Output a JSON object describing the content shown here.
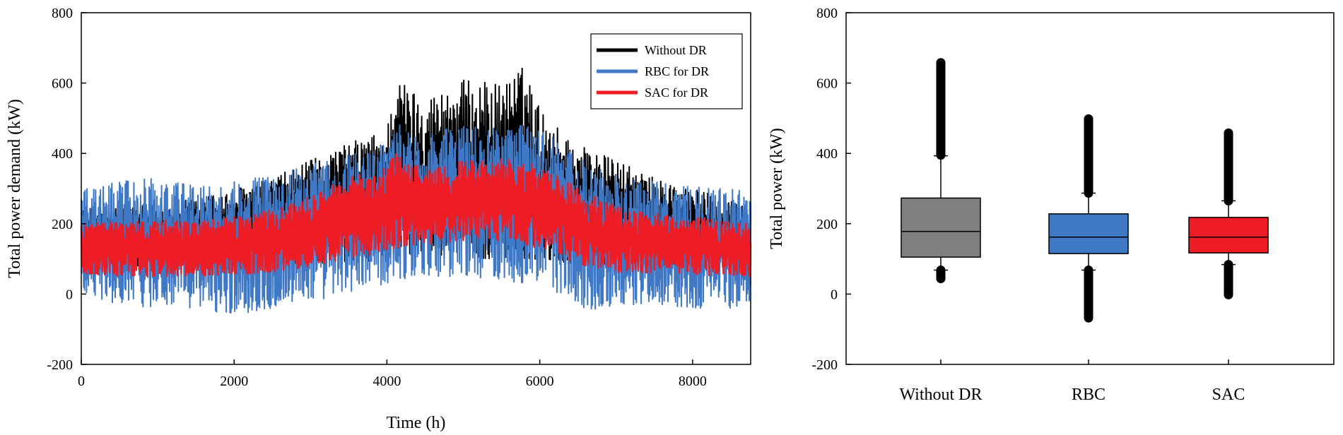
{
  "chart_data": [
    {
      "type": "line",
      "xlabel": "Time (h)",
      "ylabel": "Total power demand (kW)",
      "xlim": [
        0,
        8760
      ],
      "ylim": [
        -200,
        800
      ],
      "xticks": [
        0,
        2000,
        4000,
        6000,
        8000
      ],
      "yticks": [
        -200,
        0,
        200,
        400,
        600,
        800
      ],
      "legend_position": "top-right",
      "grid": false,
      "series": [
        {
          "name": "Without DR",
          "color": "#000000",
          "envelope_x": [
            0,
            500,
            1000,
            1500,
            2000,
            2500,
            3000,
            3500,
            4000,
            4100,
            4500,
            5000,
            5500,
            5800,
            6000,
            6300,
            6600,
            7000,
            7500,
            8000,
            8500,
            8760
          ],
          "envelope_upper": [
            240,
            250,
            260,
            270,
            300,
            330,
            380,
            430,
            470,
            620,
            560,
            610,
            600,
            650,
            530,
            460,
            420,
            380,
            330,
            300,
            270,
            260
          ],
          "envelope_lower": [
            85,
            80,
            80,
            80,
            80,
            85,
            85,
            90,
            95,
            100,
            100,
            100,
            100,
            95,
            95,
            90,
            85,
            85,
            80,
            80,
            80,
            80
          ]
        },
        {
          "name": "RBC for DR",
          "color": "#3f78c4",
          "envelope_x": [
            0,
            500,
            1000,
            1500,
            2000,
            2500,
            3000,
            3500,
            4000,
            4100,
            4500,
            5000,
            5500,
            5800,
            6000,
            6300,
            6600,
            7000,
            7500,
            8000,
            8500,
            8760
          ],
          "envelope_upper": [
            300,
            320,
            330,
            310,
            320,
            340,
            370,
            400,
            430,
            490,
            460,
            480,
            470,
            500,
            470,
            430,
            380,
            340,
            320,
            310,
            300,
            290
          ],
          "envelope_lower": [
            -10,
            -30,
            -40,
            -40,
            -60,
            -40,
            -20,
            0,
            30,
            40,
            50,
            50,
            40,
            30,
            20,
            0,
            -50,
            -30,
            -30,
            -40,
            -40,
            -30
          ]
        },
        {
          "name": "SAC for DR",
          "color": "#ee1c25",
          "envelope_x": [
            0,
            500,
            1000,
            1500,
            2000,
            2500,
            3000,
            3500,
            4000,
            4100,
            4500,
            5000,
            5500,
            5800,
            6000,
            6300,
            6600,
            7000,
            7500,
            8000,
            8500,
            8760
          ],
          "envelope_upper": [
            200,
            210,
            210,
            210,
            220,
            240,
            280,
            330,
            370,
            400,
            360,
            380,
            390,
            380,
            360,
            330,
            290,
            250,
            230,
            220,
            210,
            200
          ],
          "envelope_lower": [
            60,
            50,
            50,
            50,
            55,
            60,
            80,
            100,
            120,
            130,
            140,
            150,
            150,
            140,
            130,
            100,
            80,
            60,
            60,
            55,
            50,
            50
          ]
        }
      ]
    },
    {
      "type": "box",
      "xlabel": "",
      "ylabel": "Total power (kW)",
      "ylim": [
        -200,
        800
      ],
      "yticks": [
        -200,
        0,
        200,
        400,
        600,
        800
      ],
      "grid": false,
      "categories": [
        "Without DR",
        "RBC",
        "SAC"
      ],
      "boxes": [
        {
          "name": "Without DR",
          "color": "#808080",
          "q1": 105,
          "median": 178,
          "q3": 273,
          "whisker_low": 68,
          "whisker_high": 393,
          "outliers_low": [
            44,
            68
          ],
          "outliers_high": [
            395,
            658
          ]
        },
        {
          "name": "RBC",
          "color": "#3f78c4",
          "q1": 115,
          "median": 162,
          "q3": 228,
          "whisker_low": 68,
          "whisker_high": 287,
          "outliers_low": [
            -68,
            68
          ],
          "outliers_high": [
            287,
            498
          ]
        },
        {
          "name": "SAC",
          "color": "#ee1c25",
          "q1": 117,
          "median": 162,
          "q3": 218,
          "whisker_low": 84,
          "whisker_high": 265,
          "outliers_low": [
            -2,
            84
          ],
          "outliers_high": [
            265,
            458
          ]
        }
      ]
    }
  ]
}
